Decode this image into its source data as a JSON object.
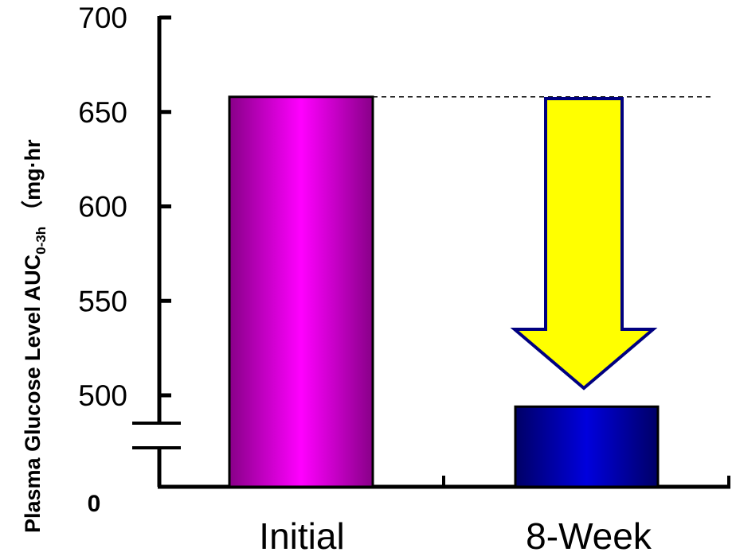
{
  "chart_data": {
    "type": "bar",
    "title": "",
    "ylabel_main": "Plasma Glucose Level AUC",
    "ylabel_sub": "0-3h",
    "ylabel_unit": "（mg·hr",
    "categories": [
      "Initial",
      "8-Week"
    ],
    "values": [
      658,
      494
    ],
    "ylim": [
      470,
      700
    ],
    "axis_break": true,
    "yticks": [
      {
        "value": 700,
        "label": "700"
      },
      {
        "value": 650,
        "label": "650"
      },
      {
        "value": 600,
        "label": "600"
      },
      {
        "value": 550,
        "label": "550"
      },
      {
        "value": 500,
        "label": "500"
      }
    ],
    "zero_label": "0",
    "reference_line_value": 658,
    "colors": {
      "initial_bar": "#ff00ff",
      "week8_bar": "#0000cc",
      "arrow_fill": "#ffff00",
      "arrow_stroke": "#000080"
    },
    "grid": false,
    "legend": "none"
  }
}
